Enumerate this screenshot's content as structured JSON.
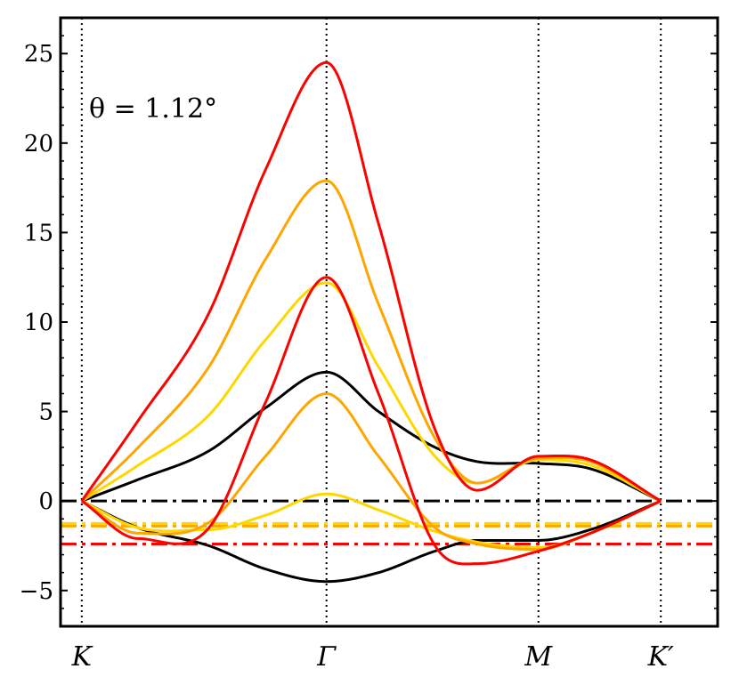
{
  "chart_data": {
    "type": "line",
    "title": "",
    "xlabel": "",
    "ylabel": "",
    "xlim": [
      -0.15,
      4.5
    ],
    "ylim": [
      -7,
      27
    ],
    "grid": false,
    "annotation": "θ = 1.12°",
    "x_ticks": [
      {
        "pos": 0,
        "label": "K"
      },
      {
        "pos": 1.732,
        "label": "Γ"
      },
      {
        "pos": 3.232,
        "label": "M"
      },
      {
        "pos": 4.098,
        "label": "K′"
      }
    ],
    "y_ticks": [
      {
        "value": -5,
        "label": "−5"
      },
      {
        "value": 0,
        "label": "0"
      },
      {
        "value": 5,
        "label": "5"
      },
      {
        "value": 10,
        "label": "10"
      },
      {
        "value": 15,
        "label": "15"
      },
      {
        "value": 20,
        "label": "20"
      },
      {
        "value": 25,
        "label": "25"
      }
    ],
    "reference_lines": [
      {
        "name": "black-fermi-line",
        "y": 0,
        "color": "#000000"
      },
      {
        "name": "gold-fermi-line",
        "y": -1.25,
        "color": "#ffd700"
      },
      {
        "name": "orange-fermi-line",
        "y": -1.4,
        "color": "#ffa500"
      },
      {
        "name": "red-fermi-line",
        "y": -2.4,
        "color": "#ff0000"
      }
    ],
    "series": [
      {
        "name": "black-band-upper",
        "color": "#000000",
        "x": [
          0,
          0.4,
          0.9,
          1.3,
          1.732,
          2.1,
          2.5,
          2.8,
          3.232,
          3.6,
          4.098
        ],
        "y": [
          0,
          1.2,
          2.8,
          5.2,
          7.2,
          5.0,
          3.0,
          2.2,
          2.1,
          1.8,
          0
        ]
      },
      {
        "name": "black-band-lower",
        "color": "#000000",
        "x": [
          0,
          0.4,
          0.9,
          1.3,
          1.732,
          2.1,
          2.5,
          2.8,
          3.232,
          3.6,
          4.098
        ],
        "y": [
          0,
          -1.5,
          -2.5,
          -3.8,
          -4.5,
          -4.0,
          -2.8,
          -2.2,
          -2.2,
          -1.6,
          0
        ]
      },
      {
        "name": "gold-band-1",
        "color": "#ffd700",
        "x": [
          0,
          0.4,
          0.9,
          1.3,
          1.732,
          2.1,
          2.5,
          2.8,
          3.232,
          3.6,
          4.098
        ],
        "y": [
          0,
          2.0,
          4.8,
          9.0,
          12.2,
          7.5,
          2.5,
          1.0,
          2.3,
          2.0,
          0
        ]
      },
      {
        "name": "gold-band-2",
        "color": "#ffd700",
        "x": [
          0,
          0.4,
          0.9,
          1.3,
          1.732,
          2.1,
          2.5,
          2.8,
          3.232,
          3.6,
          4.098
        ],
        "y": [
          0,
          -1.5,
          -1.6,
          -0.8,
          0.4,
          -0.5,
          -1.7,
          -2.3,
          -2.6,
          -1.8,
          0
        ]
      },
      {
        "name": "orange-band-1",
        "color": "#ffa500",
        "x": [
          0,
          0.4,
          0.9,
          1.3,
          1.732,
          2.1,
          2.5,
          2.8,
          3.232,
          3.6,
          4.098
        ],
        "y": [
          0,
          3.0,
          7.5,
          13.5,
          17.9,
          11.0,
          3.5,
          1.0,
          2.4,
          2.2,
          0
        ]
      },
      {
        "name": "orange-band-2",
        "color": "#ffa500",
        "x": [
          0,
          0.4,
          0.9,
          1.3,
          1.732,
          2.1,
          2.5,
          2.8,
          3.232,
          3.6,
          4.098
        ],
        "y": [
          0,
          -1.8,
          -1.2,
          2.5,
          6.0,
          2.5,
          -1.5,
          -2.4,
          -2.7,
          -1.8,
          0
        ]
      },
      {
        "name": "red-band-1",
        "color": "#ff0000",
        "x": [
          0,
          0.4,
          0.9,
          1.3,
          1.732,
          2.1,
          2.5,
          2.8,
          3.232,
          3.6,
          4.098
        ],
        "y": [
          0,
          4.5,
          10.5,
          18.5,
          24.5,
          15.5,
          4.0,
          0.6,
          2.5,
          2.3,
          0
        ]
      },
      {
        "name": "red-band-2",
        "color": "#ff0000",
        "x": [
          0,
          0.4,
          0.9,
          1.3,
          1.732,
          2.1,
          2.5,
          2.8,
          3.232,
          3.6,
          4.098
        ],
        "y": [
          0,
          -2.1,
          -1.5,
          5.5,
          12.5,
          6.0,
          -2.5,
          -3.5,
          -2.8,
          -1.8,
          0
        ]
      }
    ]
  }
}
